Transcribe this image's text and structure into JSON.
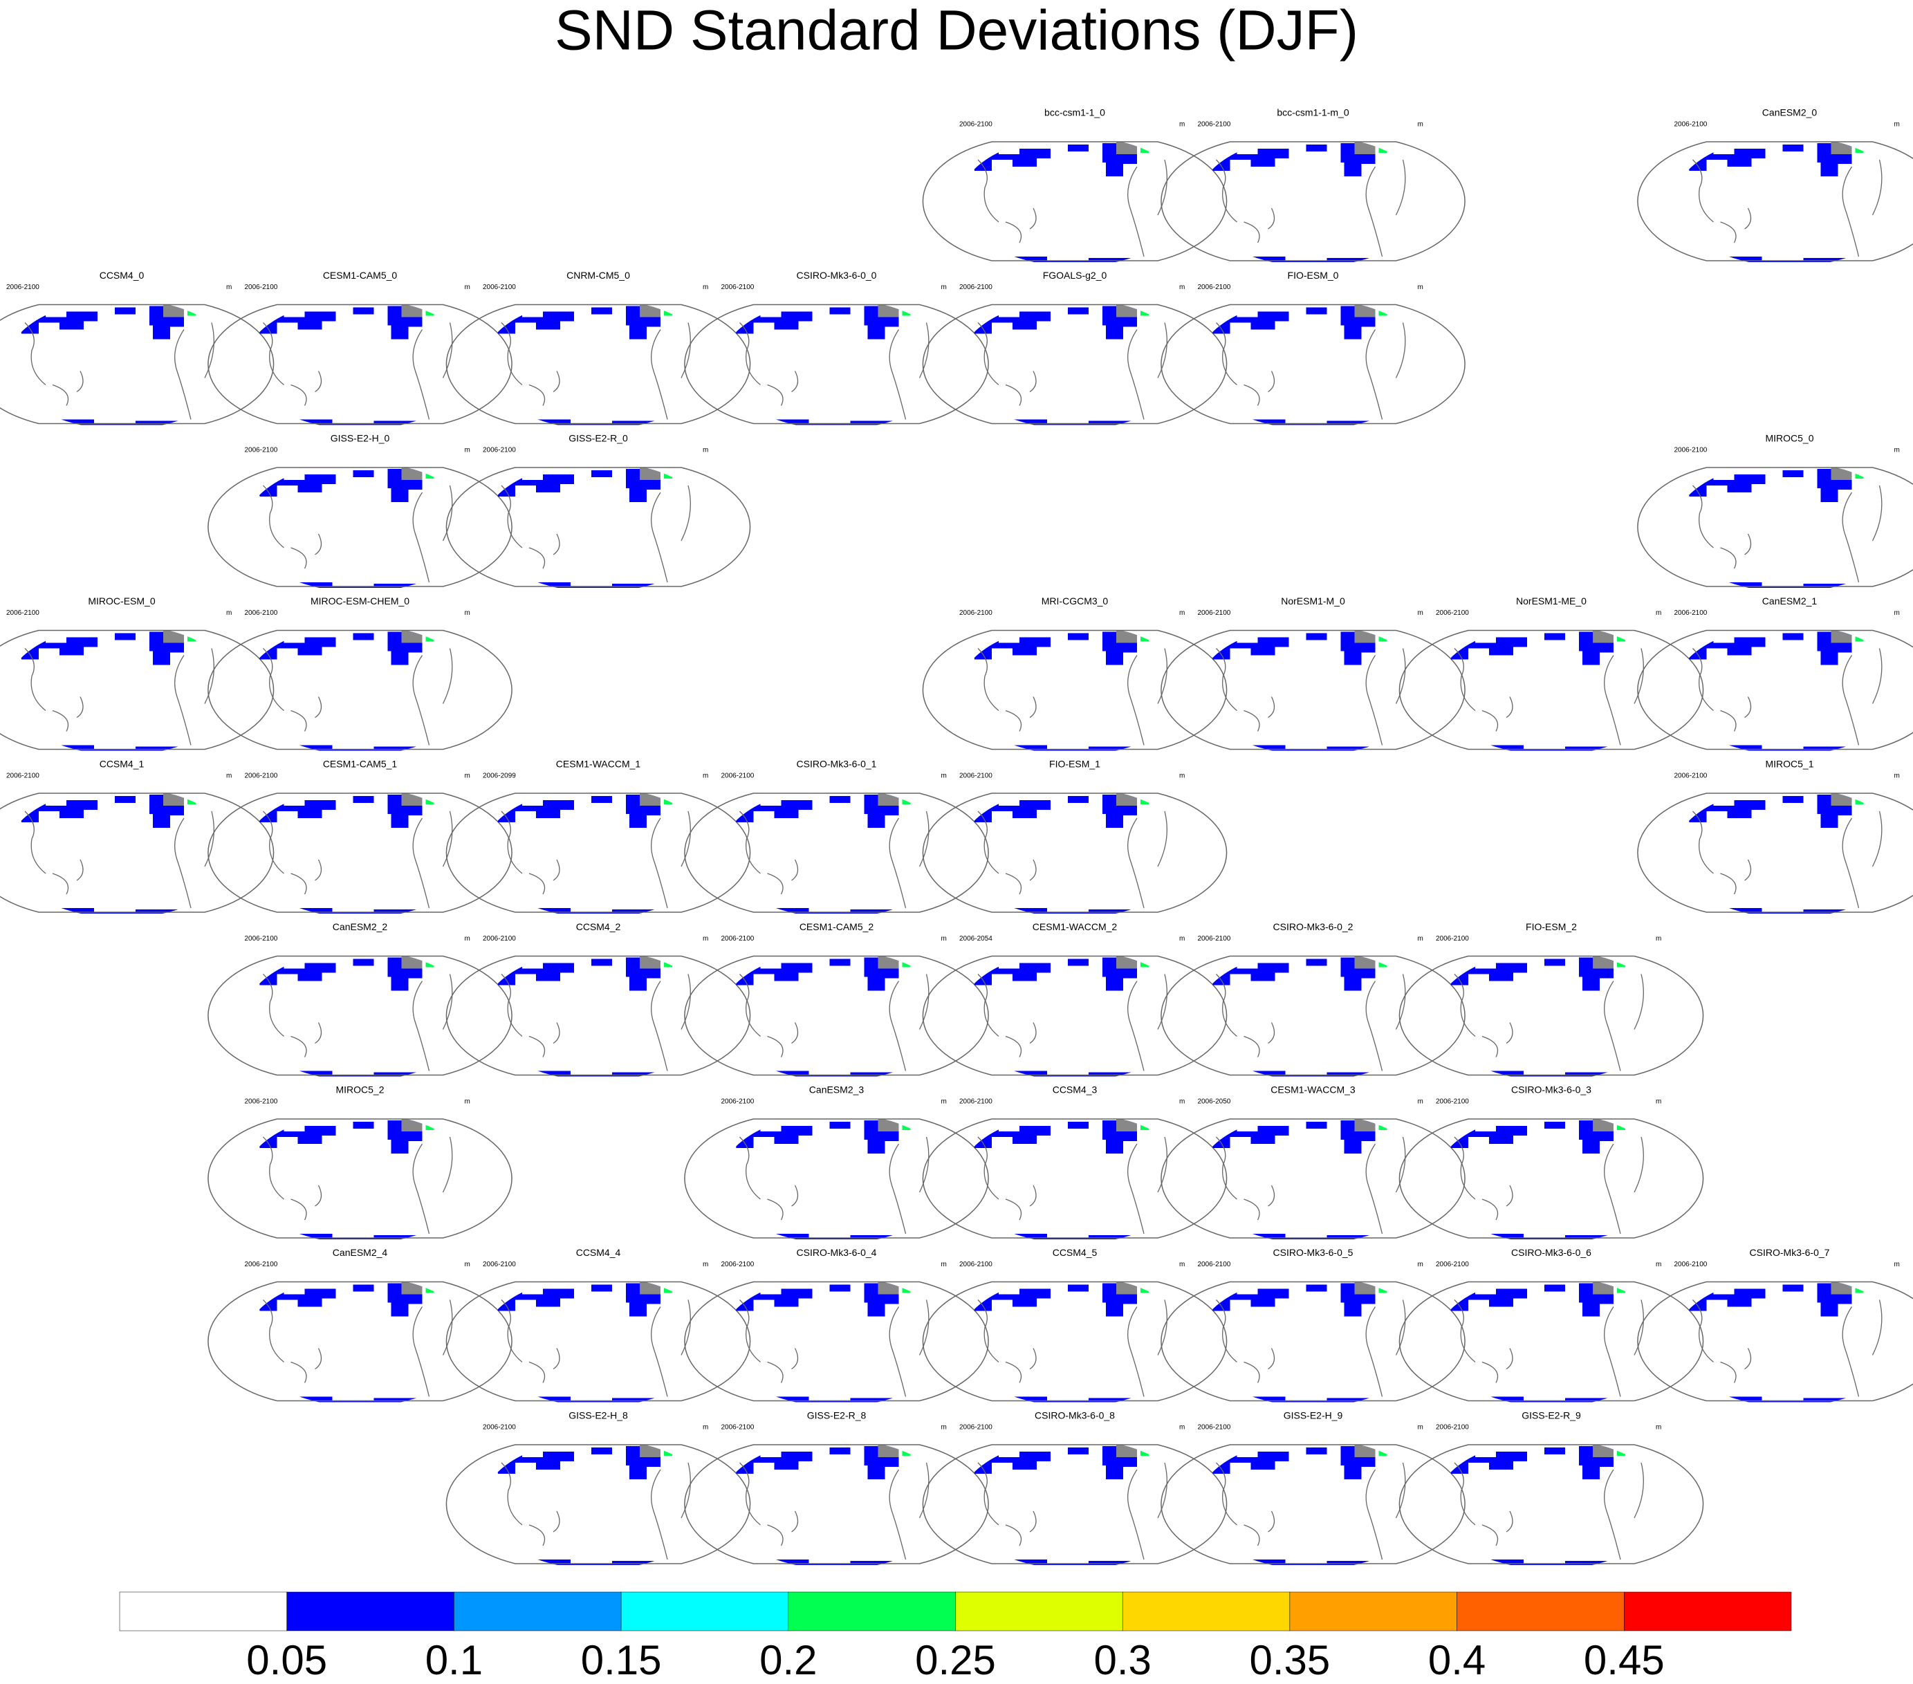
{
  "title": "SND Standard Deviations (DJF)",
  "panels": {
    "rows": [
      [
        null,
        null,
        null,
        null,
        {
          "title": "bcc-csm1-1_0",
          "period": "2006-2100",
          "unit": "m"
        },
        {
          "title": "bcc-csm1-1-m_0",
          "period": "2006-2100",
          "unit": "m"
        },
        null,
        {
          "title": "CanESM2_0",
          "period": "2006-2100",
          "unit": "m"
        }
      ],
      [
        {
          "title": "CCSM4_0",
          "period": "2006-2100",
          "unit": "m"
        },
        {
          "title": "CESM1-CAM5_0",
          "period": "2006-2100",
          "unit": "m"
        },
        {
          "title": "CNRM-CM5_0",
          "period": "2006-2100",
          "unit": "m"
        },
        {
          "title": "CSIRO-Mk3-6-0_0",
          "period": "2006-2100",
          "unit": "m"
        },
        {
          "title": "FGOALS-g2_0",
          "period": "2006-2100",
          "unit": "m"
        },
        {
          "title": "FIO-ESM_0",
          "period": "2006-2100",
          "unit": "m"
        },
        null,
        null
      ],
      [
        null,
        {
          "title": "GISS-E2-H_0",
          "period": "2006-2100",
          "unit": "m"
        },
        {
          "title": "GISS-E2-R_0",
          "period": "2006-2100",
          "unit": "m"
        },
        null,
        null,
        null,
        null,
        {
          "title": "MIROC5_0",
          "period": "2006-2100",
          "unit": "m"
        }
      ],
      [
        {
          "title": "MIROC-ESM_0",
          "period": "2006-2100",
          "unit": "m"
        },
        {
          "title": "MIROC-ESM-CHEM_0",
          "period": "2006-2100",
          "unit": "m"
        },
        null,
        null,
        {
          "title": "MRI-CGCM3_0",
          "period": "2006-2100",
          "unit": "m"
        },
        {
          "title": "NorESM1-M_0",
          "period": "2006-2100",
          "unit": "m"
        },
        {
          "title": "NorESM1-ME_0",
          "period": "2006-2100",
          "unit": "m"
        },
        {
          "title": "CanESM2_1",
          "period": "2006-2100",
          "unit": "m"
        }
      ],
      [
        {
          "title": "CCSM4_1",
          "period": "2006-2100",
          "unit": "m"
        },
        {
          "title": "CESM1-CAM5_1",
          "period": "2006-2100",
          "unit": "m"
        },
        {
          "title": "CESM1-WACCM_1",
          "period": "2006-2099",
          "unit": "m"
        },
        {
          "title": "CSIRO-Mk3-6-0_1",
          "period": "2006-2100",
          "unit": "m"
        },
        {
          "title": "FIO-ESM_1",
          "period": "2006-2100",
          "unit": "m"
        },
        null,
        null,
        {
          "title": "MIROC5_1",
          "period": "2006-2100",
          "unit": "m"
        }
      ],
      [
        null,
        {
          "title": "CanESM2_2",
          "period": "2006-2100",
          "unit": "m"
        },
        {
          "title": "CCSM4_2",
          "period": "2006-2100",
          "unit": "m"
        },
        {
          "title": "CESM1-CAM5_2",
          "period": "2006-2100",
          "unit": "m"
        },
        {
          "title": "CESM1-WACCM_2",
          "period": "2006-2054",
          "unit": "m"
        },
        {
          "title": "CSIRO-Mk3-6-0_2",
          "period": "2006-2100",
          "unit": "m"
        },
        {
          "title": "FIO-ESM_2",
          "period": "2006-2100",
          "unit": "m"
        },
        null
      ],
      [
        null,
        {
          "title": "MIROC5_2",
          "period": "2006-2100",
          "unit": "m"
        },
        null,
        {
          "title": "CanESM2_3",
          "period": "2006-2100",
          "unit": "m"
        },
        {
          "title": "CCSM4_3",
          "period": "2006-2100",
          "unit": "m"
        },
        {
          "title": "CESM1-WACCM_3",
          "period": "2006-2050",
          "unit": "m"
        },
        {
          "title": "CSIRO-Mk3-6-0_3",
          "period": "2006-2100",
          "unit": "m"
        },
        null
      ],
      [
        null,
        {
          "title": "CanESM2_4",
          "period": "2006-2100",
          "unit": "m"
        },
        {
          "title": "CCSM4_4",
          "period": "2006-2100",
          "unit": "m"
        },
        {
          "title": "CSIRO-Mk3-6-0_4",
          "period": "2006-2100",
          "unit": "m"
        },
        {
          "title": "CCSM4_5",
          "period": "2006-2100",
          "unit": "m"
        },
        {
          "title": "CSIRO-Mk3-6-0_5",
          "period": "2006-2100",
          "unit": "m"
        },
        {
          "title": "CSIRO-Mk3-6-0_6",
          "period": "2006-2100",
          "unit": "m"
        },
        {
          "title": "CSIRO-Mk3-6-0_7",
          "period": "2006-2100",
          "unit": "m"
        }
      ],
      [
        null,
        null,
        {
          "title": "GISS-E2-H_8",
          "period": "2006-2100",
          "unit": "m"
        },
        {
          "title": "GISS-E2-R_8",
          "period": "2006-2100",
          "unit": "m"
        },
        {
          "title": "CSIRO-Mk3-6-0_8",
          "period": "2006-2100",
          "unit": "m"
        },
        {
          "title": "GISS-E2-H_9",
          "period": "2006-2100",
          "unit": "m"
        },
        {
          "title": "GISS-E2-R_9",
          "period": "2006-2100",
          "unit": "m"
        },
        null
      ]
    ]
  },
  "colorbar": {
    "colors": [
      "#ffffff",
      "#0000ff",
      "#0096ff",
      "#00ffff",
      "#00ff50",
      "#ddff00",
      "#ffd700",
      "#ffa000",
      "#ff6000",
      "#ff0000"
    ],
    "ticks": [
      0.05,
      0.1,
      0.15,
      0.2,
      0.25,
      0.3,
      0.35,
      0.4,
      0.45
    ]
  }
}
